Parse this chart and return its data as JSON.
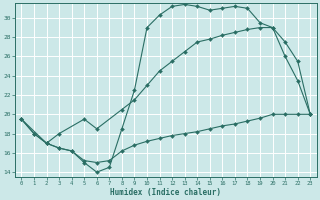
{
  "xlabel": "Humidex (Indice chaleur)",
  "xlim": [
    -0.5,
    23.5
  ],
  "ylim": [
    13.5,
    31.5
  ],
  "yticks": [
    14,
    16,
    18,
    20,
    22,
    24,
    26,
    28,
    30
  ],
  "xticks": [
    0,
    1,
    2,
    3,
    4,
    5,
    6,
    7,
    8,
    9,
    10,
    11,
    12,
    13,
    14,
    15,
    16,
    17,
    18,
    19,
    20,
    21,
    22,
    23
  ],
  "bg_color": "#cce8e8",
  "grid_color": "#ffffff",
  "line_color": "#2a6e64",
  "line1_x": [
    0,
    1,
    2,
    3,
    4,
    5,
    6,
    7,
    8,
    9,
    10,
    11,
    12,
    13,
    14,
    15,
    16,
    17,
    18,
    19,
    20,
    21,
    22,
    23
  ],
  "line1_y": [
    19.5,
    18.0,
    17.0,
    16.5,
    16.2,
    15.0,
    14.0,
    14.5,
    18.5,
    22.5,
    29.0,
    30.3,
    31.2,
    31.4,
    31.2,
    30.8,
    31.0,
    31.2,
    31.0,
    29.5,
    29.0,
    26.0,
    23.5,
    20.0
  ],
  "line2_x": [
    0,
    2,
    3,
    5,
    6,
    8,
    9,
    10,
    11,
    12,
    13,
    14,
    15,
    16,
    17,
    18,
    19,
    20,
    21,
    22,
    23
  ],
  "line2_y": [
    19.5,
    17.0,
    18.0,
    19.5,
    18.5,
    20.5,
    21.5,
    23.0,
    24.5,
    25.5,
    26.5,
    27.5,
    27.8,
    28.2,
    28.5,
    28.8,
    29.0,
    29.0,
    27.5,
    25.5,
    20.0
  ],
  "line3_x": [
    0,
    1,
    2,
    3,
    4,
    5,
    6,
    7,
    8,
    9,
    10,
    11,
    12,
    13,
    14,
    15,
    16,
    17,
    18,
    19,
    20,
    21,
    22,
    23
  ],
  "line3_y": [
    19.5,
    18.0,
    17.0,
    16.5,
    16.2,
    15.2,
    15.0,
    15.2,
    16.2,
    16.8,
    17.2,
    17.5,
    17.8,
    18.0,
    18.2,
    18.5,
    18.8,
    19.0,
    19.3,
    19.6,
    20.0,
    20.0,
    20.0,
    20.0
  ]
}
